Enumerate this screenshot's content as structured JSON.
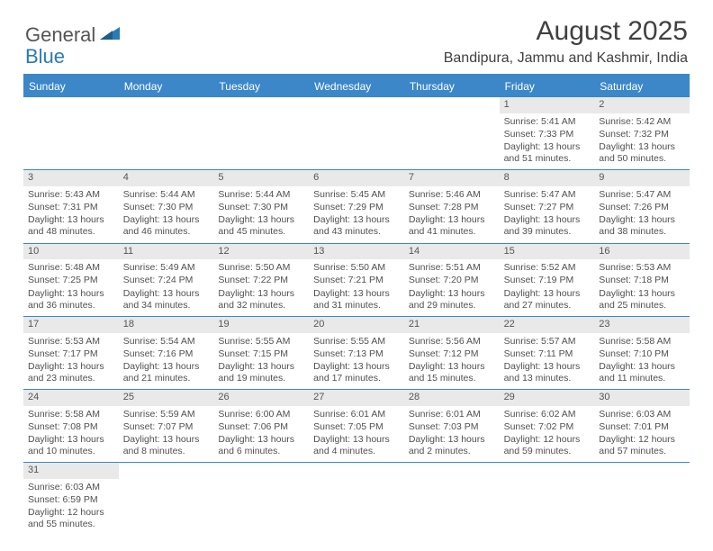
{
  "brand": {
    "general": "General",
    "blue": "Blue"
  },
  "title": {
    "month": "August 2025",
    "location": "Bandipura, Jammu and Kashmir, India"
  },
  "colors": {
    "header_bg": "#3b87c8",
    "daynum_bg": "#e9e9e9",
    "text": "#404040",
    "border": "#3b87c8"
  },
  "weekdays": [
    "Sunday",
    "Monday",
    "Tuesday",
    "Wednesday",
    "Thursday",
    "Friday",
    "Saturday"
  ],
  "first_weekday_index": 5,
  "days": [
    {
      "n": "1",
      "sunrise": "5:41 AM",
      "sunset": "7:33 PM",
      "daylight": "13 hours and 51 minutes."
    },
    {
      "n": "2",
      "sunrise": "5:42 AM",
      "sunset": "7:32 PM",
      "daylight": "13 hours and 50 minutes."
    },
    {
      "n": "3",
      "sunrise": "5:43 AM",
      "sunset": "7:31 PM",
      "daylight": "13 hours and 48 minutes."
    },
    {
      "n": "4",
      "sunrise": "5:44 AM",
      "sunset": "7:30 PM",
      "daylight": "13 hours and 46 minutes."
    },
    {
      "n": "5",
      "sunrise": "5:44 AM",
      "sunset": "7:30 PM",
      "daylight": "13 hours and 45 minutes."
    },
    {
      "n": "6",
      "sunrise": "5:45 AM",
      "sunset": "7:29 PM",
      "daylight": "13 hours and 43 minutes."
    },
    {
      "n": "7",
      "sunrise": "5:46 AM",
      "sunset": "7:28 PM",
      "daylight": "13 hours and 41 minutes."
    },
    {
      "n": "8",
      "sunrise": "5:47 AM",
      "sunset": "7:27 PM",
      "daylight": "13 hours and 39 minutes."
    },
    {
      "n": "9",
      "sunrise": "5:47 AM",
      "sunset": "7:26 PM",
      "daylight": "13 hours and 38 minutes."
    },
    {
      "n": "10",
      "sunrise": "5:48 AM",
      "sunset": "7:25 PM",
      "daylight": "13 hours and 36 minutes."
    },
    {
      "n": "11",
      "sunrise": "5:49 AM",
      "sunset": "7:24 PM",
      "daylight": "13 hours and 34 minutes."
    },
    {
      "n": "12",
      "sunrise": "5:50 AM",
      "sunset": "7:22 PM",
      "daylight": "13 hours and 32 minutes."
    },
    {
      "n": "13",
      "sunrise": "5:50 AM",
      "sunset": "7:21 PM",
      "daylight": "13 hours and 31 minutes."
    },
    {
      "n": "14",
      "sunrise": "5:51 AM",
      "sunset": "7:20 PM",
      "daylight": "13 hours and 29 minutes."
    },
    {
      "n": "15",
      "sunrise": "5:52 AM",
      "sunset": "7:19 PM",
      "daylight": "13 hours and 27 minutes."
    },
    {
      "n": "16",
      "sunrise": "5:53 AM",
      "sunset": "7:18 PM",
      "daylight": "13 hours and 25 minutes."
    },
    {
      "n": "17",
      "sunrise": "5:53 AM",
      "sunset": "7:17 PM",
      "daylight": "13 hours and 23 minutes."
    },
    {
      "n": "18",
      "sunrise": "5:54 AM",
      "sunset": "7:16 PM",
      "daylight": "13 hours and 21 minutes."
    },
    {
      "n": "19",
      "sunrise": "5:55 AM",
      "sunset": "7:15 PM",
      "daylight": "13 hours and 19 minutes."
    },
    {
      "n": "20",
      "sunrise": "5:55 AM",
      "sunset": "7:13 PM",
      "daylight": "13 hours and 17 minutes."
    },
    {
      "n": "21",
      "sunrise": "5:56 AM",
      "sunset": "7:12 PM",
      "daylight": "13 hours and 15 minutes."
    },
    {
      "n": "22",
      "sunrise": "5:57 AM",
      "sunset": "7:11 PM",
      "daylight": "13 hours and 13 minutes."
    },
    {
      "n": "23",
      "sunrise": "5:58 AM",
      "sunset": "7:10 PM",
      "daylight": "13 hours and 11 minutes."
    },
    {
      "n": "24",
      "sunrise": "5:58 AM",
      "sunset": "7:08 PM",
      "daylight": "13 hours and 10 minutes."
    },
    {
      "n": "25",
      "sunrise": "5:59 AM",
      "sunset": "7:07 PM",
      "daylight": "13 hours and 8 minutes."
    },
    {
      "n": "26",
      "sunrise": "6:00 AM",
      "sunset": "7:06 PM",
      "daylight": "13 hours and 6 minutes."
    },
    {
      "n": "27",
      "sunrise": "6:01 AM",
      "sunset": "7:05 PM",
      "daylight": "13 hours and 4 minutes."
    },
    {
      "n": "28",
      "sunrise": "6:01 AM",
      "sunset": "7:03 PM",
      "daylight": "13 hours and 2 minutes."
    },
    {
      "n": "29",
      "sunrise": "6:02 AM",
      "sunset": "7:02 PM",
      "daylight": "12 hours and 59 minutes."
    },
    {
      "n": "30",
      "sunrise": "6:03 AM",
      "sunset": "7:01 PM",
      "daylight": "12 hours and 57 minutes."
    },
    {
      "n": "31",
      "sunrise": "6:03 AM",
      "sunset": "6:59 PM",
      "daylight": "12 hours and 55 minutes."
    }
  ],
  "labels": {
    "sunrise": "Sunrise: ",
    "sunset": "Sunset: ",
    "daylight": "Daylight: "
  }
}
